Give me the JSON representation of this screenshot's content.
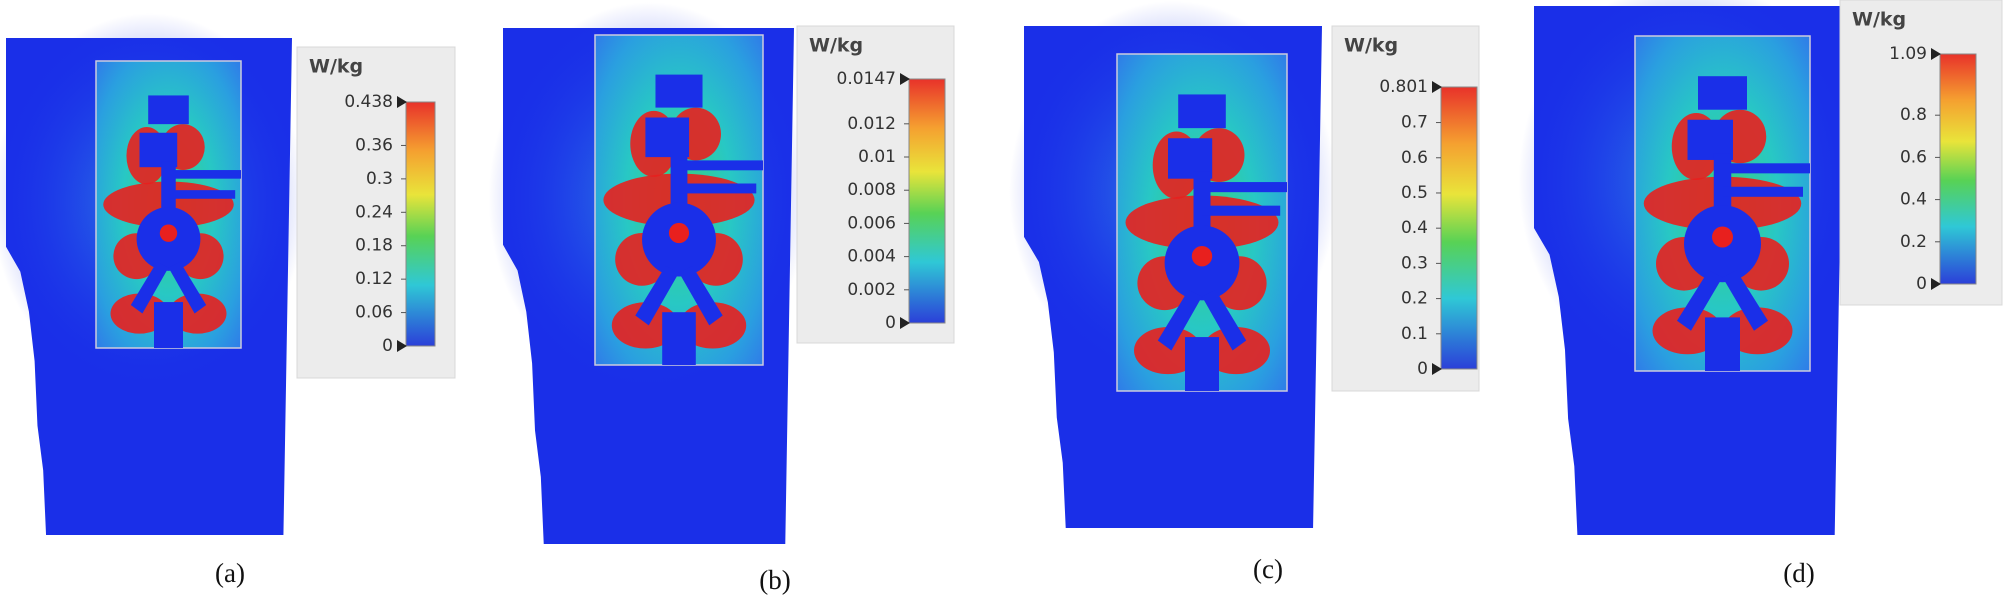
{
  "panels": [
    {
      "caption": "(a)",
      "unit": "W/kg",
      "ticks": [
        0.438,
        0.36,
        0.3,
        0.24,
        0.18,
        0.12,
        0.06,
        0
      ]
    },
    {
      "caption": "(b)",
      "unit": "W/kg",
      "ticks": [
        0.0147,
        0.012,
        0.01,
        0.008,
        0.006,
        0.004,
        0.002,
        0
      ]
    },
    {
      "caption": "(c)",
      "unit": "W/kg",
      "ticks": [
        0.801,
        0.7,
        0.6,
        0.5,
        0.4,
        0.3,
        0.2,
        0.1,
        0
      ]
    },
    {
      "caption": "(d)",
      "unit": "W/kg",
      "ticks": [
        1.09,
        0.8,
        0.6,
        0.4,
        0.2,
        0
      ]
    }
  ]
}
